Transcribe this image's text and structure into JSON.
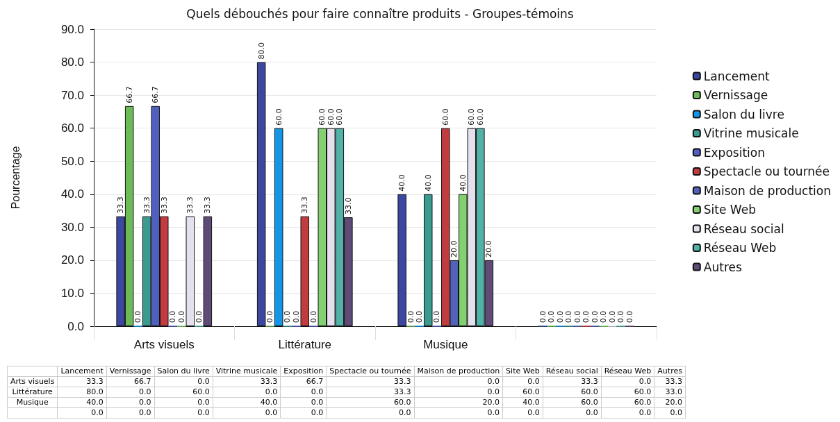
{
  "chart_data": {
    "type": "bar",
    "title": "Quels débouchés pour faire connaître produits - Groupes-témoins",
    "ylabel": "Pourcentage",
    "categories": [
      "Arts visuels",
      "Littérature",
      "Musique",
      null
    ],
    "ylim": [
      0,
      90
    ],
    "yticks": [
      {
        "value": 0,
        "label": "0.0"
      },
      {
        "value": 10,
        "label": "10.0"
      },
      {
        "value": 20,
        "label": "20.0"
      },
      {
        "value": 30,
        "label": "30.0"
      },
      {
        "value": 40,
        "label": "40.0"
      },
      {
        "value": 50,
        "label": "50.0"
      },
      {
        "value": 60,
        "label": "60.0"
      },
      {
        "value": 70,
        "label": "70.0"
      },
      {
        "value": 80,
        "label": "80.0"
      },
      {
        "value": 90,
        "label": "90.0"
      }
    ],
    "grid": "y",
    "legend": "right",
    "series": [
      {
        "name": "Lancement",
        "color": "#3c47a0",
        "values": [
          33.3,
          80.0,
          40.0,
          0
        ],
        "value_labels": [
          "33.3",
          "80.0",
          "40.0",
          "0.0"
        ]
      },
      {
        "name": "Vernissage",
        "color": "#6cba58",
        "values": [
          66.7,
          0,
          0,
          0
        ],
        "value_labels": [
          "66.7",
          "0.0",
          "0.0",
          "0.0"
        ]
      },
      {
        "name": "Salon du livre",
        "color": "#1496e8",
        "values": [
          0,
          60.0,
          0,
          0
        ],
        "value_labels": [
          "0.0",
          "60.0",
          "0.0",
          "0.0"
        ]
      },
      {
        "name": "Vitrine musicale",
        "color": "#3a9a90",
        "values": [
          33.3,
          0,
          40.0,
          0
        ],
        "value_labels": [
          "33.3",
          "0.0",
          "40.0",
          "0.0"
        ]
      },
      {
        "name": "Exposition",
        "color": "#5060c0",
        "values": [
          66.7,
          0,
          0,
          0
        ],
        "value_labels": [
          "66.7",
          "0.0",
          "0.0",
          "0.0"
        ]
      },
      {
        "name": "Spectacle ou tournée",
        "color": "#c23b3e",
        "values": [
          33.3,
          33.3,
          60.0,
          0
        ],
        "value_labels": [
          "33.3",
          "33.3",
          "60.0",
          "0.0"
        ]
      },
      {
        "name": "Maison de production",
        "color": "#5262b8",
        "values": [
          0,
          0,
          20.0,
          0
        ],
        "value_labels": [
          "0.0",
          "0.0",
          "20.0",
          "0.0"
        ]
      },
      {
        "name": "Site Web",
        "color": "#82d070",
        "values": [
          0,
          60.0,
          40.0,
          0
        ],
        "value_labels": [
          "0.0",
          "60.0",
          "40.0",
          "0.0"
        ]
      },
      {
        "name": "Réseau social",
        "color": "#e4e0ee",
        "values": [
          33.3,
          60.0,
          60.0,
          0
        ],
        "value_labels": [
          "33.3",
          "60.0",
          "60.0",
          "0.0"
        ]
      },
      {
        "name": "Réseau Web",
        "color": "#52b2a8",
        "values": [
          0,
          60.0,
          60.0,
          0
        ],
        "value_labels": [
          "0.0",
          "60.0",
          "60.0",
          "0.0"
        ]
      },
      {
        "name": "Autres",
        "color": "#5f4b78",
        "values": [
          33.3,
          33.0,
          20.0,
          0
        ],
        "value_labels": [
          "33.3",
          "33.0",
          "20.0",
          "0.0"
        ]
      }
    ]
  }
}
